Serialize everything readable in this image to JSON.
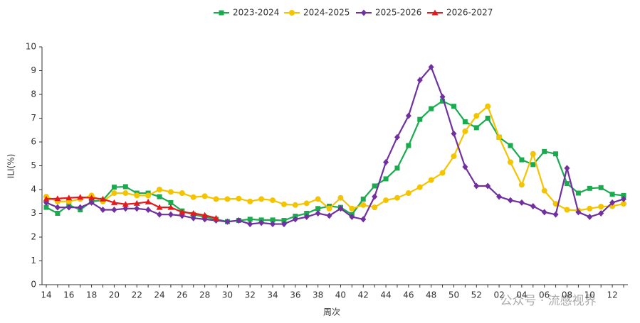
{
  "chart_data": {
    "type": "line",
    "x_label": "周次",
    "y_label": "ILI(%)",
    "watermark": "公众号 · 流感视界",
    "categories": [
      "14",
      null,
      "16",
      null,
      "18",
      null,
      "20",
      null,
      "22",
      null,
      "24",
      null,
      "26",
      null,
      "28",
      null,
      "30",
      null,
      "32",
      null,
      "34",
      null,
      "36",
      null,
      "38",
      null,
      "40",
      null,
      "42",
      null,
      "44",
      null,
      "46",
      null,
      "48",
      null,
      "50",
      null,
      "52",
      null,
      "02",
      null,
      "04",
      null,
      "06",
      null,
      "08",
      null,
      "10",
      null,
      "12",
      null
    ],
    "ylim": [
      0,
      10
    ],
    "yticks": [
      0,
      1,
      2,
      3,
      4,
      5,
      6,
      7,
      8,
      9,
      10
    ],
    "grid": false,
    "legend": "top",
    "series": [
      {
        "name": "2023-2024",
        "color": "#1aab4f",
        "marker": "square",
        "values": [
          3.25,
          3.0,
          3.35,
          3.15,
          3.5,
          3.55,
          4.1,
          4.12,
          3.85,
          3.85,
          3.7,
          3.45,
          3.1,
          2.95,
          2.85,
          2.75,
          2.65,
          2.7,
          2.75,
          2.72,
          2.72,
          2.7,
          2.88,
          3.0,
          3.2,
          3.3,
          3.25,
          2.95,
          3.6,
          4.15,
          4.45,
          4.9,
          5.85,
          6.95,
          7.4,
          7.72,
          7.5,
          6.85,
          6.6,
          7.0,
          6.2,
          5.85,
          5.25,
          5.05,
          5.6,
          5.5,
          4.25,
          3.85,
          4.05,
          4.08,
          3.8,
          3.75
        ]
      },
      {
        "name": "2024-2025",
        "color": "#f5c400",
        "marker": "circle",
        "values": [
          3.7,
          3.5,
          3.5,
          3.6,
          3.75,
          3.5,
          3.85,
          3.85,
          3.75,
          3.75,
          4.0,
          3.9,
          3.85,
          3.68,
          3.72,
          3.6,
          3.6,
          3.62,
          3.5,
          3.6,
          3.55,
          3.38,
          3.35,
          3.42,
          3.6,
          3.2,
          3.65,
          3.2,
          3.35,
          3.25,
          3.55,
          3.65,
          3.85,
          4.1,
          4.4,
          4.7,
          5.4,
          6.45,
          7.1,
          7.5,
          6.2,
          5.15,
          4.2,
          5.5,
          3.95,
          3.4,
          3.15,
          3.12,
          3.2,
          3.28,
          3.3,
          3.4
        ]
      },
      {
        "name": "2025-2026",
        "color": "#7030a0",
        "marker": "diamond",
        "values": [
          3.45,
          3.25,
          3.25,
          3.25,
          3.45,
          3.15,
          3.15,
          3.2,
          3.2,
          3.15,
          2.95,
          2.95,
          2.9,
          2.8,
          2.75,
          2.7,
          2.65,
          2.7,
          2.55,
          2.6,
          2.55,
          2.55,
          2.75,
          2.85,
          3.0,
          2.9,
          3.2,
          2.85,
          2.75,
          3.7,
          5.15,
          6.2,
          7.1,
          8.6,
          9.15,
          7.9,
          6.35,
          4.95,
          4.15,
          4.15,
          3.7,
          3.55,
          3.45,
          3.3,
          3.05,
          2.95,
          4.9,
          3.05,
          2.85,
          3.0,
          3.45,
          3.6
        ]
      },
      {
        "name": "2026-2027",
        "color": "#e41a1c",
        "marker": "triangle",
        "values": [
          3.6,
          3.62,
          3.65,
          3.68,
          3.65,
          3.6,
          3.45,
          3.38,
          3.42,
          3.48,
          3.25,
          3.25,
          3.05,
          3.0,
          2.92,
          2.8,
          null,
          null,
          null,
          null,
          null,
          null,
          null,
          null,
          null,
          null,
          null,
          null,
          null,
          null,
          null,
          null,
          null,
          null,
          null,
          null,
          null,
          null,
          null,
          null,
          null,
          null,
          null,
          null,
          null,
          null,
          null,
          null,
          null,
          null,
          null,
          null
        ]
      }
    ]
  }
}
